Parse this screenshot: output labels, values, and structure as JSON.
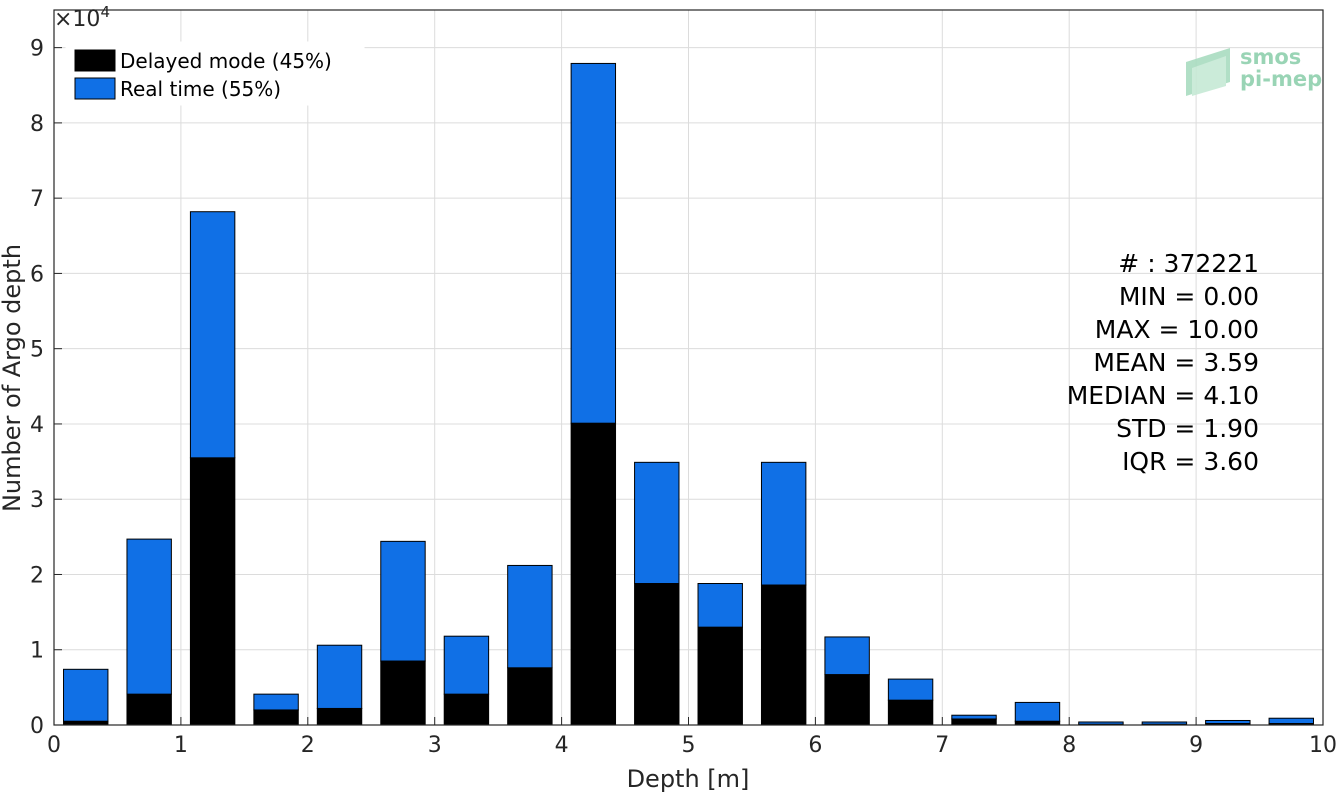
{
  "chart_data": {
    "type": "bar",
    "stacked": true,
    "x": [
      0.25,
      0.75,
      1.25,
      1.75,
      2.25,
      2.75,
      3.25,
      3.75,
      4.25,
      4.75,
      5.25,
      5.75,
      6.25,
      6.75,
      7.25,
      7.75,
      8.25,
      8.75,
      9.25,
      9.75
    ],
    "series": [
      {
        "name": "Delayed mode (45%)",
        "color": "#000000",
        "values": [
          500,
          4100,
          35500,
          2000,
          2200,
          8500,
          4100,
          7600,
          40100,
          18800,
          13000,
          18600,
          6700,
          3300,
          800,
          500,
          100,
          100,
          200,
          200
        ]
      },
      {
        "name": "Real time (55%)",
        "color": "#1070e6",
        "values": [
          6900,
          20600,
          32700,
          2100,
          8400,
          15900,
          7700,
          13600,
          47800,
          16100,
          5800,
          16300,
          5000,
          2800,
          500,
          2500,
          300,
          300,
          400,
          700
        ]
      }
    ],
    "xlabel": "Depth [m]",
    "ylabel": "Number of Argo depth",
    "xlim": [
      0,
      10
    ],
    "ylim": [
      0,
      95000
    ],
    "xticks": [
      0,
      1,
      2,
      3,
      4,
      5,
      6,
      7,
      8,
      9,
      10
    ],
    "yticks": [
      0,
      1,
      2,
      3,
      4,
      5,
      6,
      7,
      8,
      9
    ],
    "y_multiplier": "×10",
    "y_multiplier_exp": "4",
    "grid": true,
    "legend_placement": "top-left"
  },
  "stats": {
    "lines": [
      "# : 372221",
      "MIN = 0.00",
      "MAX =  10.00",
      "MEAN = 3.59",
      "MEDIAN = 4.10",
      "STD = 1.90",
      "IQR = 3.60"
    ]
  },
  "logo": {
    "line1": "smos",
    "line2": "pi-mep"
  }
}
